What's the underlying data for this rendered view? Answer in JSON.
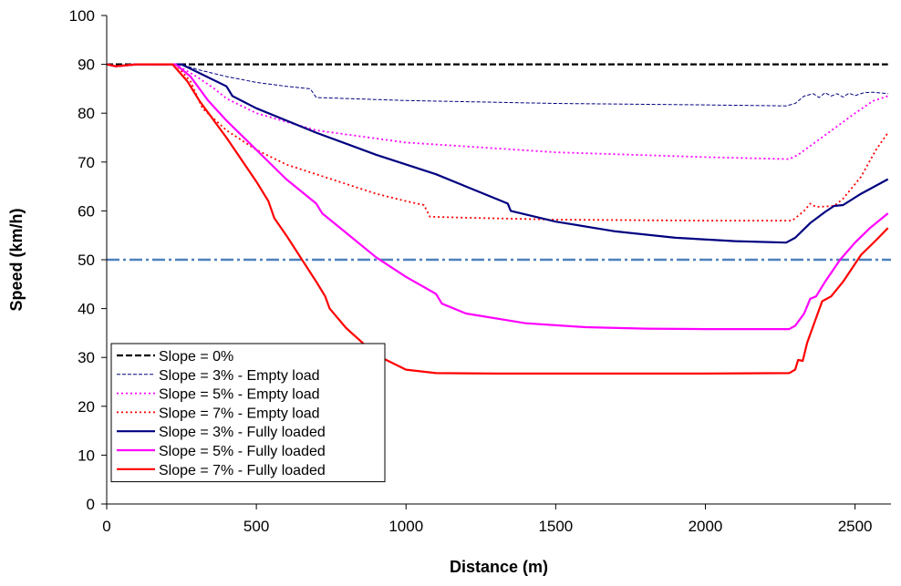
{
  "chart_data": {
    "type": "line",
    "title": "",
    "xlabel": "Distance (m)",
    "ylabel": "Speed (km/h)",
    "xlim": [
      0,
      2620
    ],
    "ylim": [
      0,
      100
    ],
    "xticks": [
      0,
      500,
      1000,
      1500,
      2000,
      2500
    ],
    "yticks": [
      0,
      10,
      20,
      30,
      40,
      50,
      60,
      70,
      80,
      90,
      100
    ],
    "grid": false,
    "legend_position": "bottom-left",
    "reference_line": {
      "y": 50,
      "color": "#4f81bd",
      "dash": "dashdot"
    },
    "series": [
      {
        "name": "Slope = 0%",
        "color": "#000000",
        "style": "dashed",
        "width": 2.2,
        "points": [
          [
            0,
            90
          ],
          [
            2610,
            90
          ]
        ]
      },
      {
        "name": "Slope = 3% - Empty load",
        "color": "#000080",
        "style": "dashed-thin",
        "width": 1,
        "points": [
          [
            0,
            90
          ],
          [
            30,
            89.6
          ],
          [
            100,
            90
          ],
          [
            250,
            90
          ],
          [
            300,
            89
          ],
          [
            400,
            87.5
          ],
          [
            500,
            86.3
          ],
          [
            600,
            85.5
          ],
          [
            680,
            85
          ],
          [
            700,
            83.2
          ],
          [
            800,
            83
          ],
          [
            1000,
            82.6
          ],
          [
            1500,
            82
          ],
          [
            2000,
            81.7
          ],
          [
            2270,
            81.5
          ],
          [
            2300,
            82
          ],
          [
            2330,
            83.5
          ],
          [
            2360,
            84
          ],
          [
            2380,
            83.2
          ],
          [
            2400,
            84.2
          ],
          [
            2420,
            83.5
          ],
          [
            2440,
            84
          ],
          [
            2460,
            83.3
          ],
          [
            2480,
            84.1
          ],
          [
            2500,
            83.6
          ],
          [
            2530,
            84.2
          ],
          [
            2560,
            84.3
          ],
          [
            2610,
            84
          ]
        ]
      },
      {
        "name": "Slope = 5% - Empty load",
        "color": "#ff00ff",
        "style": "dotted",
        "width": 1.8,
        "points": [
          [
            0,
            90
          ],
          [
            30,
            89.6
          ],
          [
            100,
            90
          ],
          [
            230,
            90
          ],
          [
            300,
            87.5
          ],
          [
            360,
            85
          ],
          [
            400,
            83
          ],
          [
            500,
            80
          ],
          [
            700,
            76.5
          ],
          [
            1000,
            74
          ],
          [
            1500,
            72
          ],
          [
            2000,
            71
          ],
          [
            2280,
            70.6
          ],
          [
            2310,
            71.5
          ],
          [
            2400,
            75.5
          ],
          [
            2500,
            80
          ],
          [
            2560,
            82.5
          ],
          [
            2610,
            83.5
          ]
        ]
      },
      {
        "name": "Slope = 7% - Empty load",
        "color": "#ff0000",
        "style": "dotted",
        "width": 1.8,
        "points": [
          [
            0,
            90
          ],
          [
            30,
            89.6
          ],
          [
            100,
            90
          ],
          [
            230,
            90
          ],
          [
            280,
            86.5
          ],
          [
            320,
            81
          ],
          [
            400,
            76.5
          ],
          [
            500,
            72.5
          ],
          [
            600,
            69.5
          ],
          [
            700,
            67.5
          ],
          [
            800,
            65.5
          ],
          [
            900,
            63.5
          ],
          [
            1000,
            62
          ],
          [
            1060,
            61.2
          ],
          [
            1080,
            58.8
          ],
          [
            1200,
            58.6
          ],
          [
            1500,
            58.2
          ],
          [
            2000,
            58
          ],
          [
            2290,
            58
          ],
          [
            2330,
            60
          ],
          [
            2350,
            61.5
          ],
          [
            2370,
            60.8
          ],
          [
            2430,
            61
          ],
          [
            2460,
            62.5
          ],
          [
            2520,
            67
          ],
          [
            2570,
            72.5
          ],
          [
            2610,
            76
          ]
        ]
      },
      {
        "name": "Slope = 3% - Fully loaded",
        "color": "#000080",
        "style": "solid",
        "width": 2.2,
        "points": [
          [
            0,
            90
          ],
          [
            30,
            89.6
          ],
          [
            100,
            90
          ],
          [
            250,
            90
          ],
          [
            300,
            88.5
          ],
          [
            400,
            85.5
          ],
          [
            420,
            83.5
          ],
          [
            500,
            81
          ],
          [
            700,
            76
          ],
          [
            900,
            71.5
          ],
          [
            1100,
            67.5
          ],
          [
            1300,
            62.5
          ],
          [
            1340,
            61.5
          ],
          [
            1350,
            60
          ],
          [
            1500,
            57.8
          ],
          [
            1700,
            55.8
          ],
          [
            1900,
            54.5
          ],
          [
            2100,
            53.8
          ],
          [
            2270,
            53.5
          ],
          [
            2300,
            54.5
          ],
          [
            2350,
            57.5
          ],
          [
            2400,
            59.8
          ],
          [
            2430,
            61
          ],
          [
            2460,
            61.2
          ],
          [
            2520,
            63.5
          ],
          [
            2610,
            66.5
          ]
        ]
      },
      {
        "name": "Slope = 5% - Fully loaded",
        "color": "#ff00ff",
        "style": "solid",
        "width": 2.2,
        "points": [
          [
            0,
            90
          ],
          [
            30,
            89.6
          ],
          [
            100,
            90
          ],
          [
            230,
            90
          ],
          [
            280,
            87.5
          ],
          [
            340,
            82.5
          ],
          [
            400,
            78.5
          ],
          [
            500,
            72.5
          ],
          [
            600,
            66.5
          ],
          [
            700,
            61.5
          ],
          [
            720,
            59.5
          ],
          [
            800,
            55.5
          ],
          [
            900,
            50.5
          ],
          [
            1000,
            46.5
          ],
          [
            1100,
            43
          ],
          [
            1120,
            41
          ],
          [
            1200,
            39
          ],
          [
            1400,
            37
          ],
          [
            1600,
            36.2
          ],
          [
            1800,
            35.9
          ],
          [
            2000,
            35.8
          ],
          [
            2280,
            35.8
          ],
          [
            2300,
            36.5
          ],
          [
            2330,
            39
          ],
          [
            2350,
            42
          ],
          [
            2370,
            42.5
          ],
          [
            2400,
            45.5
          ],
          [
            2450,
            50
          ],
          [
            2500,
            53.5
          ],
          [
            2550,
            56.5
          ],
          [
            2610,
            59.5
          ]
        ]
      },
      {
        "name": "Slope = 7% - Fully loaded",
        "color": "#ff0000",
        "style": "solid",
        "width": 2.2,
        "points": [
          [
            0,
            90
          ],
          [
            30,
            89.6
          ],
          [
            100,
            90
          ],
          [
            220,
            90
          ],
          [
            270,
            86.5
          ],
          [
            310,
            82.5
          ],
          [
            400,
            75
          ],
          [
            500,
            66
          ],
          [
            540,
            62
          ],
          [
            560,
            58.5
          ],
          [
            600,
            55
          ],
          [
            700,
            45.5
          ],
          [
            730,
            42.5
          ],
          [
            745,
            40
          ],
          [
            800,
            36
          ],
          [
            900,
            30.5
          ],
          [
            1000,
            27.5
          ],
          [
            1100,
            26.8
          ],
          [
            1300,
            26.7
          ],
          [
            2000,
            26.7
          ],
          [
            2280,
            26.8
          ],
          [
            2300,
            27.5
          ],
          [
            2310,
            29.5
          ],
          [
            2325,
            29.3
          ],
          [
            2340,
            33
          ],
          [
            2390,
            41.5
          ],
          [
            2420,
            42.5
          ],
          [
            2460,
            45.5
          ],
          [
            2520,
            51
          ],
          [
            2570,
            54
          ],
          [
            2610,
            56.5
          ]
        ]
      }
    ]
  }
}
